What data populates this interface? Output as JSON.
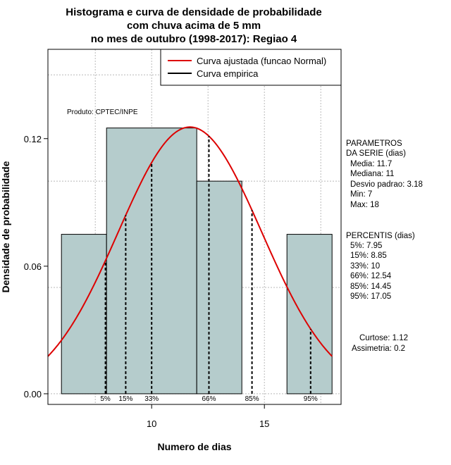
{
  "chart_data": {
    "type": "bar",
    "title_lines": [
      "Histograma e curva de densidade de probabilidade",
      "com chuva acima de 5 mm",
      "no mes de outubro (1998-2017): Regiao 4"
    ],
    "xlabel": "Numero de dias",
    "ylabel": "Densidade de probabilidade",
    "xlim": [
      5.4,
      18.4
    ],
    "ylim": [
      -0.005,
      0.162
    ],
    "x_ticks": [
      10,
      15
    ],
    "y_ticks": [
      0.0,
      0.06,
      0.12
    ],
    "y_tick_labels": [
      "0.00",
      "0.06",
      "0.12"
    ],
    "grid": true,
    "bins": [
      {
        "from": 6,
        "to": 8,
        "density": 0.075
      },
      {
        "from": 8,
        "to": 12,
        "density": 0.125
      },
      {
        "from": 12,
        "to": 14,
        "density": 0.1
      },
      {
        "from": 16,
        "to": 18,
        "density": 0.075
      }
    ],
    "normal_curve": {
      "mean": 11.7,
      "sd": 3.18,
      "label": "Curva ajustada (funcao Normal)",
      "color": "#dd0000"
    },
    "empirical": {
      "label": "Curva empirica",
      "color": "#000000"
    },
    "percentile_lines": [
      {
        "label": "5%",
        "x": 7.95
      },
      {
        "label": "15%",
        "x": 8.85
      },
      {
        "label": "33%",
        "x": 10
      },
      {
        "label": "66%",
        "x": 12.54
      },
      {
        "label": "85%",
        "x": 14.45
      },
      {
        "label": "95%",
        "x": 17.05
      }
    ],
    "legend_position": "top-right",
    "product_label": "Produto: CPTEC/INPE",
    "bar_color": "#b5cccc"
  },
  "side_panel": {
    "params_title_1": "PARAMETROS",
    "params_title_2": "DA SERIE (dias)",
    "params": [
      "Media: 11.7",
      "Mediana: 11",
      "Desvio padrao: 3.18",
      "Min: 7",
      "Max: 18"
    ],
    "percentis_title": "PERCENTIS (dias)",
    "percentis": [
      "5%: 7.95",
      "15%: 8.85",
      "33%: 10",
      "66%: 12.54",
      "85%: 14.45",
      "95%: 17.05"
    ],
    "curtose": "Curtose: 1.12",
    "assimetria": "Assimetria: 0.2"
  }
}
